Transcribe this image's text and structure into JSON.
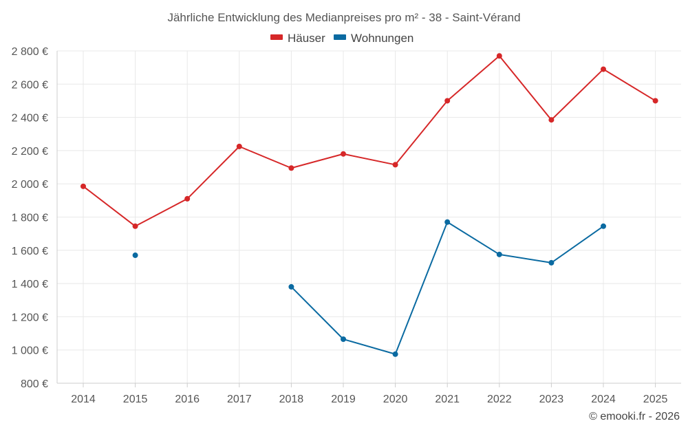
{
  "chart_data": {
    "type": "line",
    "title": "Jährliche Entwicklung des Medianpreises pro m² - 38 - Saint-Vérand",
    "xlabel": "",
    "ylabel": "",
    "x": [
      2014,
      2015,
      2016,
      2017,
      2018,
      2019,
      2020,
      2021,
      2022,
      2023,
      2024,
      2025
    ],
    "xtick_labels": [
      "2014",
      "2015",
      "2016",
      "2017",
      "2018",
      "2019",
      "2020",
      "2021",
      "2022",
      "2023",
      "2024",
      "2025"
    ],
    "ylim": [
      800,
      2800
    ],
    "yticks": [
      800,
      1000,
      1200,
      1400,
      1600,
      1800,
      2000,
      2200,
      2400,
      2600,
      2800
    ],
    "ytick_labels": [
      "800 €",
      "1 000 €",
      "1 200 €",
      "1 400 €",
      "1 600 €",
      "1 800 €",
      "2 000 €",
      "2 200 €",
      "2 400 €",
      "2 600 €",
      "2 800 €"
    ],
    "grid": true,
    "legend_position": "top-center",
    "series": [
      {
        "name": "Häuser",
        "color": "#d62728",
        "values": [
          1985,
          1745,
          1910,
          2225,
          2095,
          2180,
          2115,
          2500,
          2770,
          2385,
          2690,
          2500
        ]
      },
      {
        "name": "Wohnungen",
        "color": "#0a6aa1",
        "values": [
          null,
          1570,
          null,
          null,
          1380,
          1065,
          975,
          1770,
          1575,
          1525,
          1745,
          null
        ]
      }
    ]
  },
  "credit": "© emooki.fr - 2026"
}
